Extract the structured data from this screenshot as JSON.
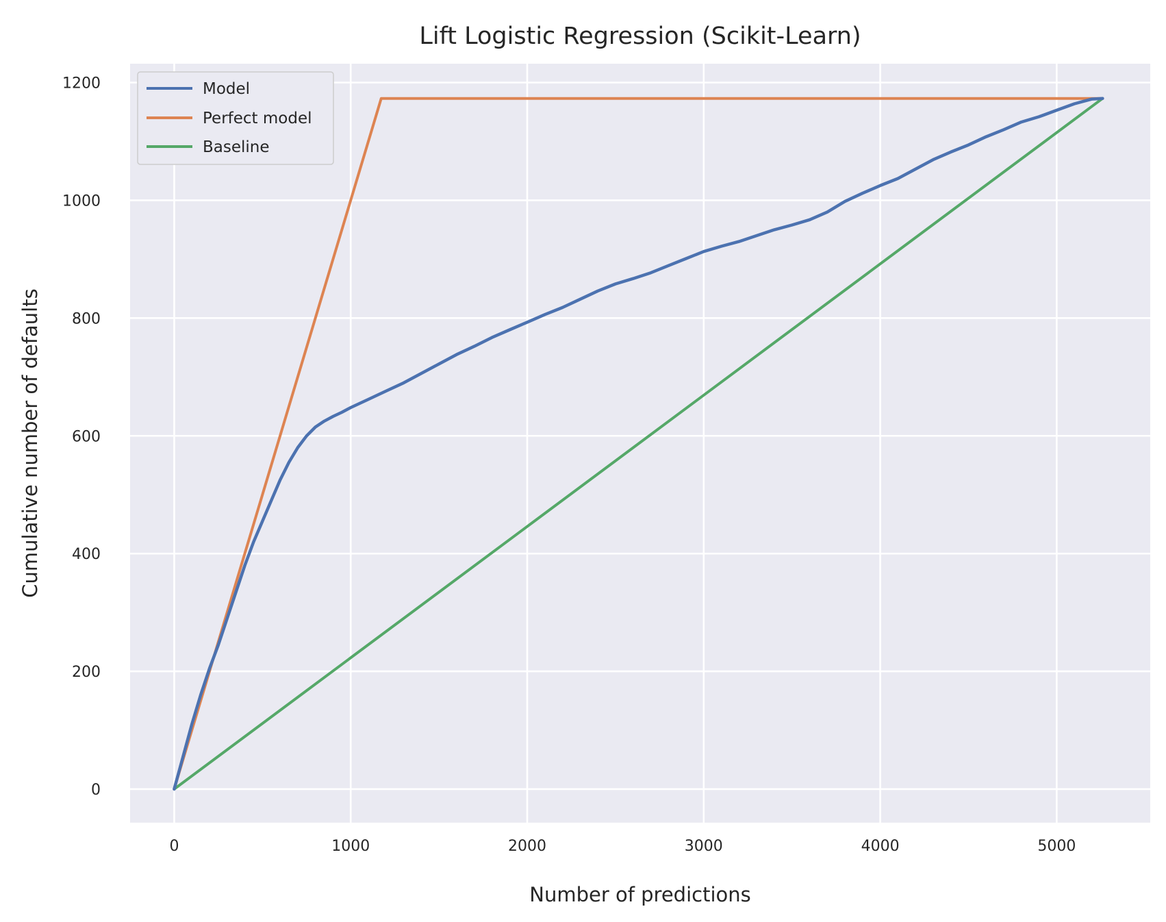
{
  "chart_data": {
    "type": "line",
    "title": "Lift Logistic Regression (Scikit-Learn)",
    "xlabel": "Number of predictions",
    "ylabel": "Cumulative number of defaults",
    "xlim": [
      -250,
      5530
    ],
    "ylim": [
      -57,
      1232
    ],
    "xticks": [
      0,
      1000,
      2000,
      3000,
      4000,
      5000
    ],
    "yticks": [
      0,
      200,
      400,
      600,
      800,
      1000,
      1200
    ],
    "grid": true,
    "legend_position": "top-left",
    "background_color": "#eaeaf2",
    "series": [
      {
        "name": "Model",
        "color": "#4c72b0",
        "x": [
          0,
          50,
          100,
          150,
          200,
          250,
          300,
          350,
          400,
          450,
          500,
          550,
          600,
          650,
          700,
          750,
          800,
          850,
          900,
          950,
          1000,
          1100,
          1200,
          1300,
          1400,
          1500,
          1600,
          1700,
          1800,
          1900,
          2000,
          2100,
          2200,
          2300,
          2400,
          2500,
          2600,
          2700,
          2800,
          2900,
          3000,
          3100,
          3200,
          3300,
          3400,
          3500,
          3600,
          3700,
          3800,
          3900,
          4000,
          4100,
          4200,
          4300,
          4400,
          4500,
          4600,
          4700,
          4800,
          4900,
          5000,
          5100,
          5200,
          5260
        ],
        "y": [
          0,
          55,
          110,
          160,
          205,
          245,
          290,
          335,
          380,
          420,
          455,
          490,
          525,
          555,
          580,
          600,
          615,
          625,
          633,
          640,
          648,
          662,
          676,
          690,
          706,
          722,
          738,
          752,
          767,
          780,
          793,
          806,
          818,
          832,
          846,
          858,
          867,
          877,
          889,
          901,
          913,
          922,
          930,
          940,
          950,
          958,
          967,
          980,
          998,
          1012,
          1025,
          1037,
          1053,
          1069,
          1082,
          1094,
          1108,
          1120,
          1133,
          1142,
          1153,
          1164,
          1172,
          1173
        ]
      },
      {
        "name": "Perfect model",
        "color": "#dd8452",
        "x": [
          0,
          1173,
          5260
        ],
        "y": [
          0,
          1173,
          1173
        ]
      },
      {
        "name": "Baseline",
        "color": "#55a868",
        "x": [
          0,
          5260
        ],
        "y": [
          0,
          1173
        ]
      }
    ]
  }
}
